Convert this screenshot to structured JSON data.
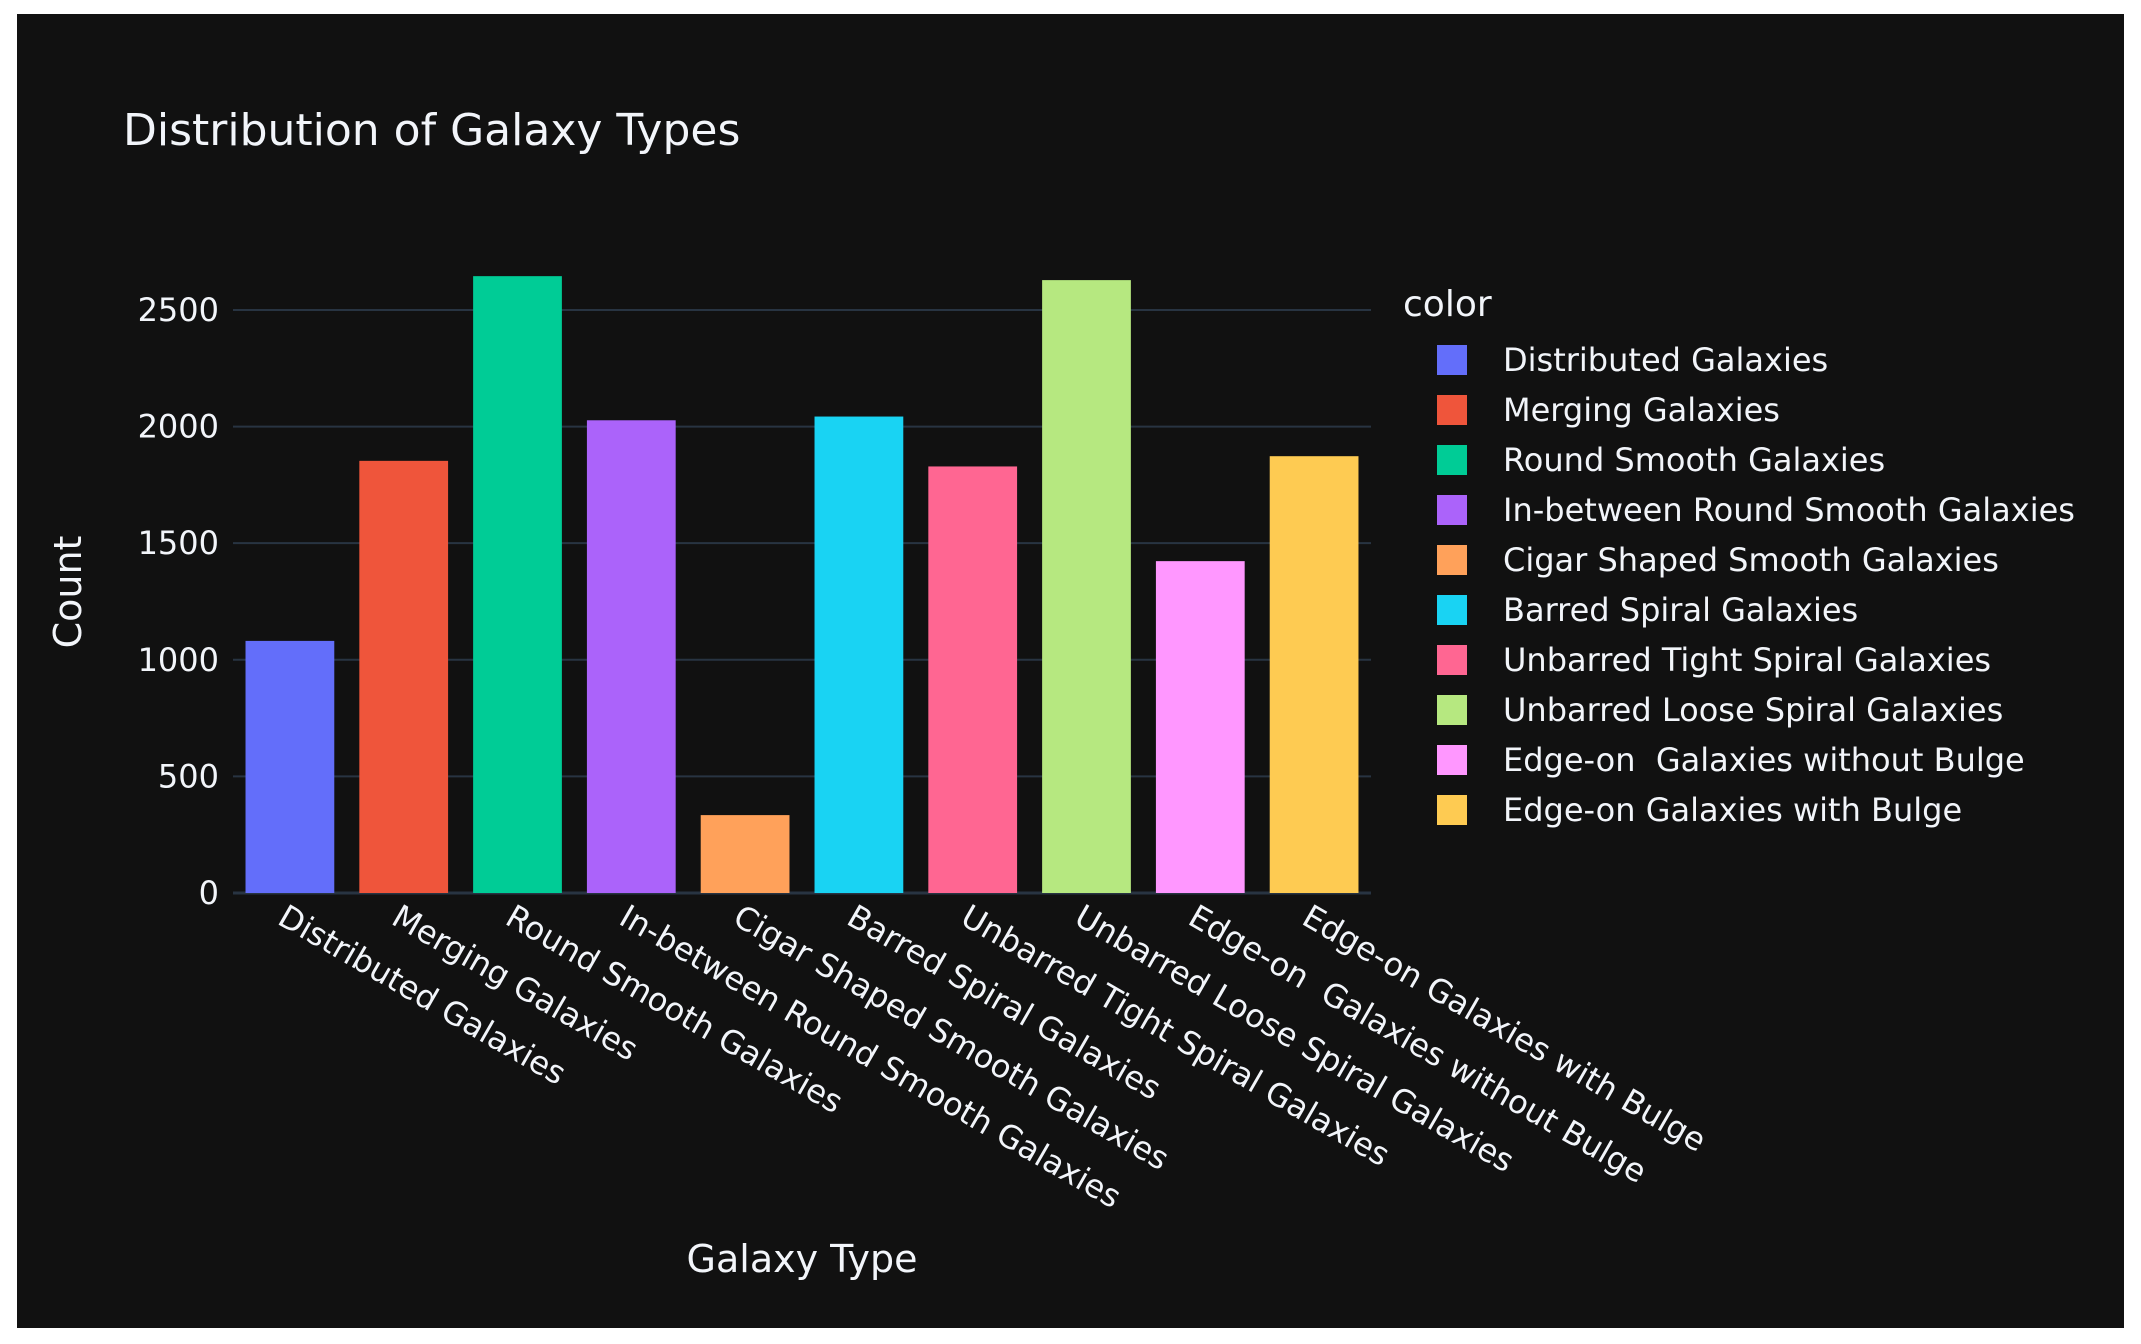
{
  "chart_data": {
    "type": "bar",
    "title": "Distribution of Galaxy Types",
    "xlabel": "Galaxy Type",
    "ylabel": "Count",
    "ylim": [
      0,
      2800
    ],
    "yticks": [
      0,
      500,
      1000,
      1500,
      2000,
      2500
    ],
    "grid": true,
    "legend_title": "color",
    "legend_position": "right",
    "categories": [
      "Distributed Galaxies",
      "Merging Galaxies",
      "Round Smooth Galaxies",
      "In-between Round Smooth Galaxies",
      "Cigar Shaped Smooth Galaxies",
      "Barred Spiral Galaxies",
      "Unbarred Tight Spiral Galaxies",
      "Unbarred Loose Spiral Galaxies",
      "Edge-on  Galaxies without Bulge",
      "Edge-on Galaxies with Bulge"
    ],
    "values": [
      1081,
      1853,
      2645,
      2027,
      334,
      2043,
      1829,
      2628,
      1423,
      1873
    ],
    "colors": [
      "#636efa",
      "#EF553B",
      "#00cc96",
      "#ab63fa",
      "#FFA15A",
      "#19d3f3",
      "#FF6692",
      "#B6E880",
      "#FF97FF",
      "#FECB52"
    ],
    "background_color": "#111111",
    "grid_color": "#283442",
    "text_color": "#f2f5fa"
  }
}
